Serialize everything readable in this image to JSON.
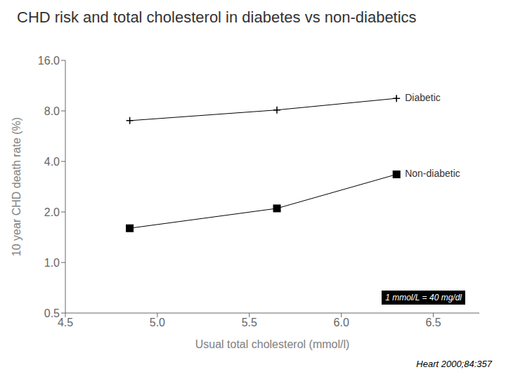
{
  "chart_data": {
    "type": "line",
    "title": "CHD risk and total cholesterol in diabetes vs non-diabetics",
    "x_label": "Usual total cholesterol (mmol/l)",
    "y_label": "10 year CHD death rate (%)",
    "x": [
      4.85,
      5.65,
      6.3
    ],
    "series": [
      {
        "name": "Diabetic",
        "color": "#000000",
        "marker": "plus",
        "line_style": "solid",
        "values": [
          7.0,
          8.1,
          9.5
        ],
        "error_lo": [
          0.25,
          0.1,
          0.2
        ],
        "error_hi": [
          0.25,
          0.1,
          0.25
        ]
      },
      {
        "name": "Non-diabetic",
        "color": "#000000",
        "marker": "square",
        "line_style": "solid",
        "values": [
          1.6,
          2.1,
          3.35
        ],
        "error_lo": [
          0.07,
          0.07,
          0.1
        ],
        "error_hi": [
          0.07,
          0.07,
          0.1
        ]
      }
    ],
    "xlim": [
      4.5,
      6.75
    ],
    "ylim": [
      0.5,
      16.0
    ],
    "xticks": [
      4.5,
      {
        "value": 5.0,
        "label": "5.0"
      },
      5.5,
      {
        "value": 6.0,
        "label": "6.0"
      },
      6.5
    ],
    "yticks": [
      0.5,
      {
        "value": 1.0,
        "label": "1.0"
      },
      {
        "value": 2.0,
        "label": "2.0"
      },
      {
        "value": 4.0,
        "label": "4.0"
      },
      {
        "value": 8.0,
        "label": "8.0"
      },
      {
        "value": 16.0,
        "label": "16.0"
      }
    ],
    "log": "y",
    "grid": false,
    "annotations": [
      "1 mmol/L = 40 mg/dl",
      "Heart 2000;84:357"
    ]
  }
}
